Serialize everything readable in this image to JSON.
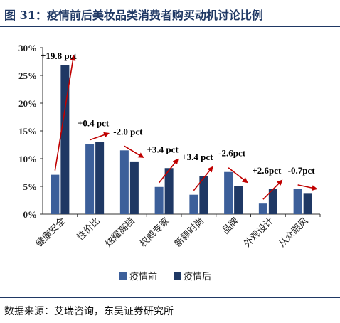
{
  "title": "图 31：疫情前后美妆品类消费者购买动机讨论比例",
  "source": "数据来源：艾瑞咨询，东吴证券研究所",
  "chart_data": {
    "type": "bar",
    "categories": [
      "健康安全",
      "性价比",
      "炫耀高档",
      "权威专家",
      "新颖时尚",
      "品牌",
      "外观设计",
      "从众跟风"
    ],
    "series": [
      {
        "name": "疫情前",
        "values": [
          7.1,
          12.6,
          11.5,
          4.9,
          3.5,
          7.6,
          1.9,
          4.5
        ],
        "color": "#3c5f9a"
      },
      {
        "name": "疫情后",
        "values": [
          26.9,
          13.0,
          9.5,
          8.3,
          6.9,
          5.0,
          4.5,
          3.8
        ],
        "color": "#1f3864"
      }
    ],
    "annotations": [
      "+19.8 pct",
      "+0.4 pct",
      "-2.0 pct",
      "+3.4 pct",
      "+3.4 pct",
      "-2.6pct",
      "+2.6pct",
      "-0.7pct"
    ],
    "yticks": [
      "0%",
      "5%",
      "10%",
      "15%",
      "20%",
      "25%",
      "30%"
    ],
    "ylim": [
      0,
      30
    ],
    "legend_position": "bottom",
    "arrow_color": "#c00000",
    "grid": false
  }
}
